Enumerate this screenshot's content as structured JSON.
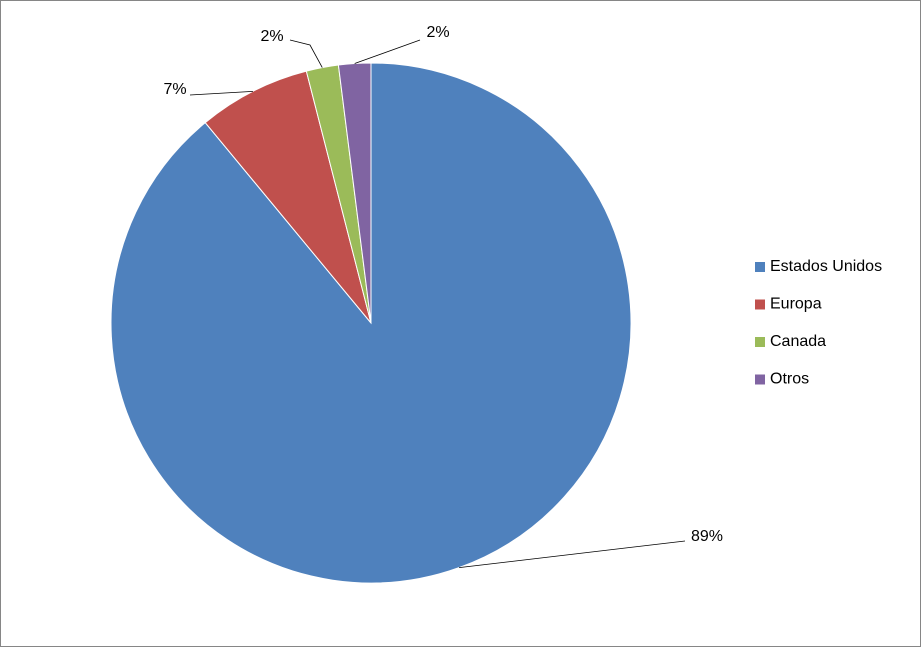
{
  "chart_data": {
    "type": "pie",
    "categories": [
      "Estados Unidos",
      "Europa",
      "Canada",
      "Otros"
    ],
    "values": [
      89,
      7,
      2,
      2
    ],
    "value_labels": [
      "89%",
      "7%",
      "2%",
      "2%"
    ],
    "colors": [
      "#4f81bd",
      "#c0504d",
      "#9bbb59",
      "#8064a2"
    ],
    "legend": "right"
  }
}
